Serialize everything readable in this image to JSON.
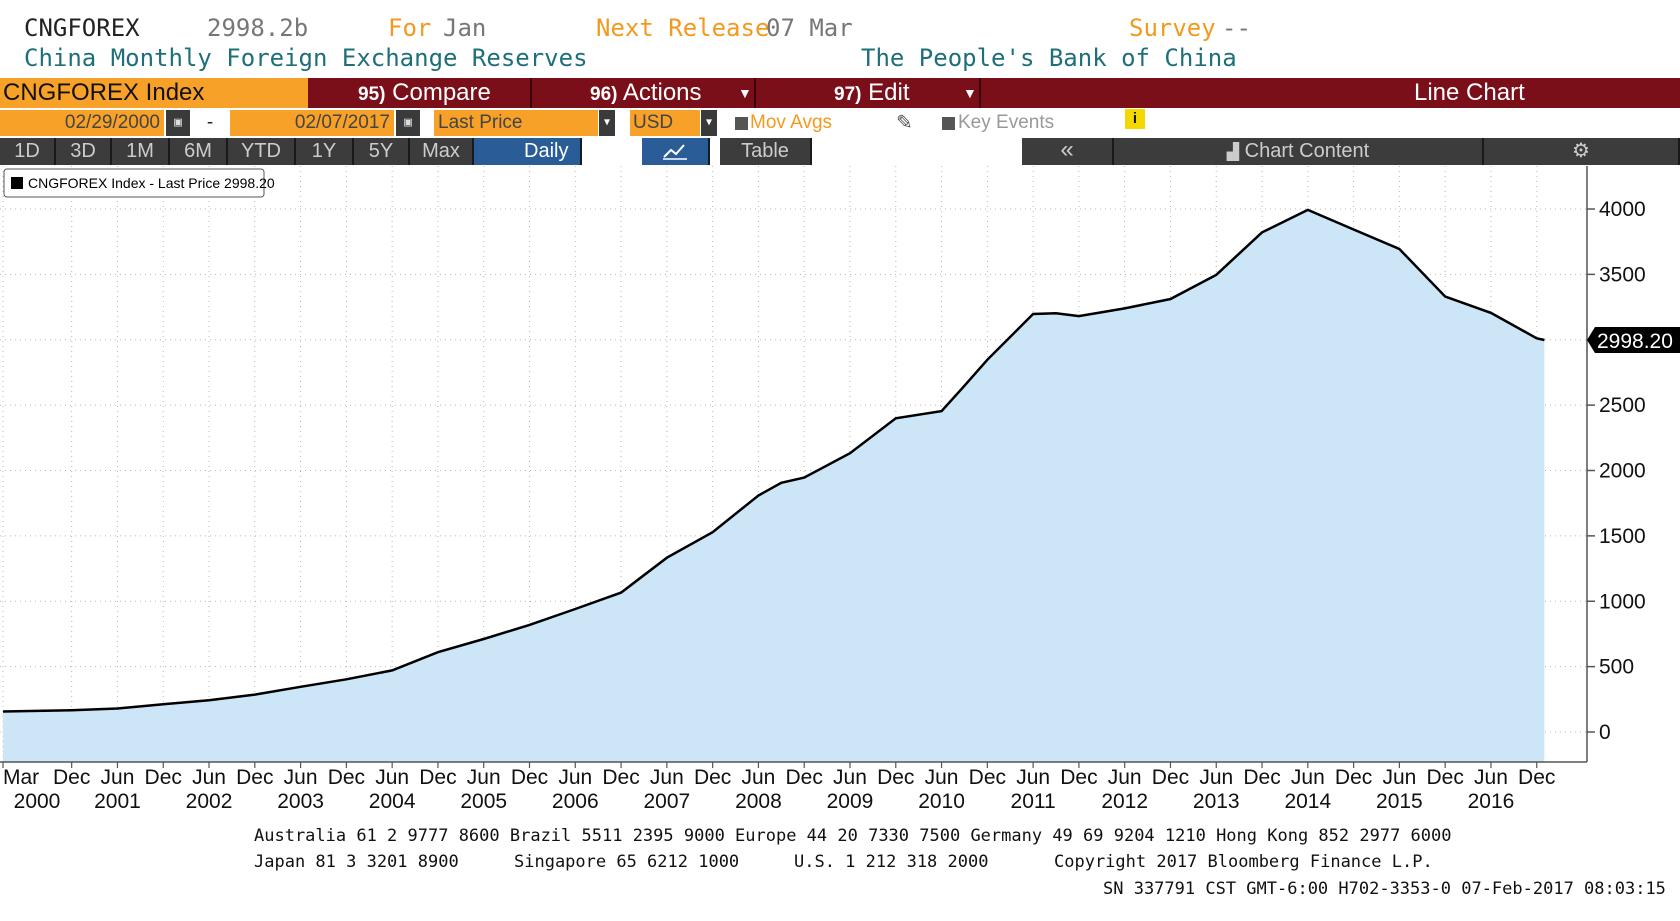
{
  "header": {
    "ticker": "CNGFOREX",
    "last_value": "2998.2b",
    "for_label": "For",
    "for_value": "Jan",
    "next_release_label": "Next Release",
    "next_release_value": "07 Mar",
    "survey_label": "Survey",
    "survey_value": "--",
    "description": "China Monthly Foreign Exchange Reserves",
    "source": "The People's Bank of China"
  },
  "toolbar": {
    "security": "CNGFOREX Index",
    "compare_num": "95)",
    "compare_label": "Compare",
    "actions_num": "96)",
    "actions_label": "Actions",
    "edit_num": "97)",
    "edit_label": "Edit",
    "chart_type": "Line Chart"
  },
  "controls": {
    "start_date": "02/29/2000",
    "date_sep": "-",
    "end_date": "02/07/2017",
    "field": "Last Price",
    "currency": "USD",
    "mov_avgs": "Mov Avgs",
    "key_events": "Key Events",
    "info_icon": "i"
  },
  "ranges": {
    "buttons": [
      "1D",
      "3D",
      "1M",
      "6M",
      "YTD",
      "1Y",
      "5Y",
      "Max"
    ],
    "periodicity": "Daily",
    "table_label": "Table",
    "collapse_icon": "«",
    "chart_content": "Chart Content",
    "settings_icon": "⚙"
  },
  "chart_data": {
    "type": "area",
    "legend": "CNGFOREX Index - Last Price 2998.20",
    "last_value_label": "2998.20",
    "ylim": [
      -100,
      4300
    ],
    "yticks": [
      0,
      500,
      1000,
      1500,
      2000,
      2500,
      3000,
      3500,
      4000
    ],
    "ytick_labels": [
      "0",
      "500",
      "1000",
      "1500",
      "2000",
      "2500",
      "",
      "3500",
      "4000"
    ],
    "grid": true,
    "x_ticks": [
      {
        "label": "Mar",
        "year": "2000"
      },
      {
        "label": "Dec",
        "year": ""
      },
      {
        "label": "Jun",
        "year": "2001"
      },
      {
        "label": "Dec",
        "year": ""
      },
      {
        "label": "Jun",
        "year": "2002"
      },
      {
        "label": "Dec",
        "year": ""
      },
      {
        "label": "Jun",
        "year": "2003"
      },
      {
        "label": "Dec",
        "year": ""
      },
      {
        "label": "Jun",
        "year": "2004"
      },
      {
        "label": "Dec",
        "year": ""
      },
      {
        "label": "Jun",
        "year": "2005"
      },
      {
        "label": "Dec",
        "year": ""
      },
      {
        "label": "Jun",
        "year": "2006"
      },
      {
        "label": "Dec",
        "year": ""
      },
      {
        "label": "Jun",
        "year": "2007"
      },
      {
        "label": "Dec",
        "year": ""
      },
      {
        "label": "Jun",
        "year": "2008"
      },
      {
        "label": "Dec",
        "year": ""
      },
      {
        "label": "Jun",
        "year": "2009"
      },
      {
        "label": "Dec",
        "year": ""
      },
      {
        "label": "Jun",
        "year": "2010"
      },
      {
        "label": "Dec",
        "year": ""
      },
      {
        "label": "Jun",
        "year": "2011"
      },
      {
        "label": "Dec",
        "year": ""
      },
      {
        "label": "Jun",
        "year": "2012"
      },
      {
        "label": "Dec",
        "year": ""
      },
      {
        "label": "Jun",
        "year": "2013"
      },
      {
        "label": "Dec",
        "year": ""
      },
      {
        "label": "Jun",
        "year": "2014"
      },
      {
        "label": "Dec",
        "year": ""
      },
      {
        "label": "Jun",
        "year": "2015"
      },
      {
        "label": "Dec",
        "year": ""
      },
      {
        "label": "Jun",
        "year": "2016"
      },
      {
        "label": "Dec",
        "year": ""
      }
    ],
    "series": [
      {
        "x": [
          "2000-03",
          "2000-12",
          "2001-06",
          "2001-12",
          "2002-06",
          "2002-12",
          "2003-06",
          "2003-12",
          "2004-06",
          "2004-12",
          "2005-06",
          "2005-12",
          "2006-06",
          "2006-12",
          "2007-06",
          "2007-12",
          "2008-06",
          "2008-09",
          "2008-12",
          "2009-06",
          "2009-12",
          "2010-06",
          "2010-09",
          "2010-12",
          "2011-06",
          "2011-09",
          "2011-12",
          "2012-06",
          "2012-12",
          "2013-06",
          "2013-12",
          "2014-06",
          "2014-12",
          "2015-06",
          "2015-12",
          "2016-06",
          "2016-12",
          "2017-01"
        ],
        "values": [
          157,
          166,
          180,
          212,
          243,
          286,
          346,
          403,
          471,
          610,
          711,
          819,
          941,
          1066,
          1333,
          1528,
          1809,
          1906,
          1946,
          2132,
          2399,
          2454,
          2648,
          2847,
          3197,
          3202,
          3181,
          3240,
          3312,
          3497,
          3821,
          3993,
          3843,
          3694,
          3330,
          3205,
          3011,
          2998
        ]
      }
    ]
  },
  "footer": {
    "line1": "Australia 61 2 9777 8600 Brazil 5511 2395 9000 Europe 44 20 7330 7500 Germany 49 69 9204 1210 Hong Kong 852 2977 6000",
    "line2_a": "Japan 81 3 3201 8900",
    "line2_b": "Singapore 65 6212 1000",
    "line2_c": "U.S. 1 212 318 2000",
    "line2_d": "Copyright 2017 Bloomberg Finance L.P.",
    "line3": "SN 337791 CST  GMT-6:00 H702-3353-0 07-Feb-2017 08:03:15"
  },
  "colors": {
    "area_fill": "#cce6f8",
    "line": "#000000",
    "toolbar_bg": "#7a0f1a",
    "orange": "#f7a128",
    "selected": "#2a5d98"
  }
}
